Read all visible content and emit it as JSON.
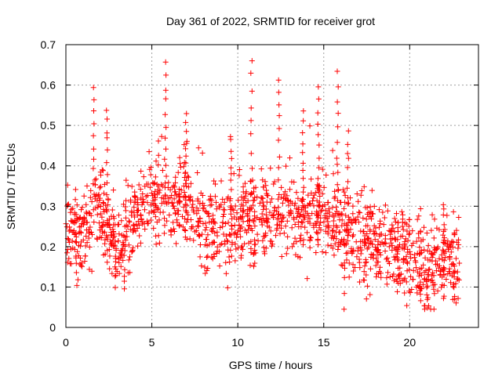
{
  "chart_data": {
    "type": "scatter",
    "title": "Day 361 of 2022, SRMTID for receiver grot",
    "xlabel": "GPS time / hours",
    "ylabel": "SRMTID / TECUs",
    "xlim": [
      0,
      24
    ],
    "ylim": [
      0,
      0.7
    ],
    "xticks": [
      0,
      5,
      10,
      15,
      20
    ],
    "yticks": [
      0,
      0.1,
      0.2,
      0.3,
      0.4,
      0.5,
      0.6,
      0.7
    ],
    "xtick_labels": [
      "0",
      "5",
      "10",
      "15",
      "20"
    ],
    "ytick_labels": [
      "0",
      "0.1",
      "0.2",
      "0.3",
      "0.4",
      "0.5",
      "0.6",
      "0.7"
    ],
    "grid": true,
    "marker": "+",
    "color": "#ff0000",
    "x_data_range": [
      0,
      22.9
    ],
    "y_data_range": [
      0.045,
      0.66
    ],
    "trend": [
      {
        "x": 0,
        "y": 0.24
      },
      {
        "x": 1,
        "y": 0.22
      },
      {
        "x": 2,
        "y": 0.3
      },
      {
        "x": 3,
        "y": 0.19
      },
      {
        "x": 4,
        "y": 0.27
      },
      {
        "x": 5,
        "y": 0.3
      },
      {
        "x": 6,
        "y": 0.32
      },
      {
        "x": 7,
        "y": 0.3
      },
      {
        "x": 8,
        "y": 0.24
      },
      {
        "x": 9,
        "y": 0.25
      },
      {
        "x": 10,
        "y": 0.26
      },
      {
        "x": 11,
        "y": 0.25
      },
      {
        "x": 12,
        "y": 0.27
      },
      {
        "x": 13,
        "y": 0.28
      },
      {
        "x": 14,
        "y": 0.27
      },
      {
        "x": 15,
        "y": 0.28
      },
      {
        "x": 16,
        "y": 0.24
      },
      {
        "x": 17,
        "y": 0.22
      },
      {
        "x": 18,
        "y": 0.22
      },
      {
        "x": 19,
        "y": 0.2
      },
      {
        "x": 20,
        "y": 0.18
      },
      {
        "x": 21,
        "y": 0.13
      },
      {
        "x": 22,
        "y": 0.15
      },
      {
        "x": 22.9,
        "y": 0.16
      }
    ],
    "spikes": [
      {
        "x": 1.6,
        "y": 0.6
      },
      {
        "x": 2.4,
        "y": 0.54
      },
      {
        "x": 5.8,
        "y": 0.65
      },
      {
        "x": 7.0,
        "y": 0.53
      },
      {
        "x": 9.6,
        "y": 0.48
      },
      {
        "x": 10.8,
        "y": 0.66
      },
      {
        "x": 12.4,
        "y": 0.61
      },
      {
        "x": 13.8,
        "y": 0.53
      },
      {
        "x": 14.7,
        "y": 0.59
      },
      {
        "x": 15.8,
        "y": 0.63
      },
      {
        "x": 16.4,
        "y": 0.48
      },
      {
        "x": 22.0,
        "y": 0.3
      }
    ],
    "dips": [
      {
        "x": 0.6,
        "y": 0.11
      },
      {
        "x": 2.9,
        "y": 0.1
      },
      {
        "x": 3.4,
        "y": 0.1
      },
      {
        "x": 16.2,
        "y": 0.045
      },
      {
        "x": 17.5,
        "y": 0.07
      },
      {
        "x": 19.3,
        "y": 0.09
      },
      {
        "x": 20.6,
        "y": 0.07
      },
      {
        "x": 21.0,
        "y": 0.05
      },
      {
        "x": 22.6,
        "y": 0.08
      }
    ]
  }
}
